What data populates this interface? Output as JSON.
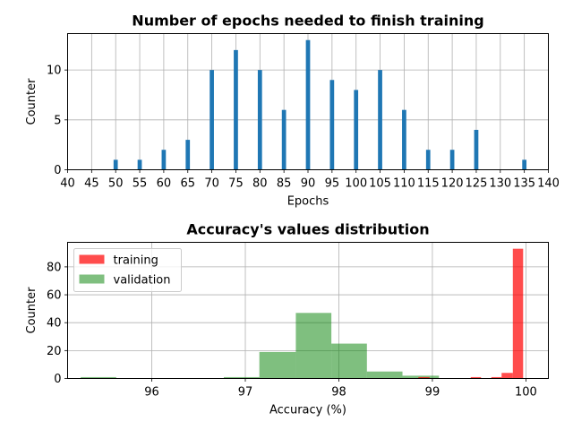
{
  "chart_data": [
    {
      "type": "bar",
      "title": "Number of epochs needed to finish training",
      "xlabel": "Epochs",
      "ylabel": "Counter",
      "xlim": [
        40,
        140
      ],
      "ylim": [
        0,
        13.65
      ],
      "grid": true,
      "xticks": [
        40,
        45,
        50,
        55,
        60,
        65,
        70,
        75,
        80,
        85,
        90,
        95,
        100,
        105,
        110,
        115,
        120,
        125,
        130,
        135,
        140
      ],
      "yticks": [
        0,
        5,
        10
      ],
      "color": "#1f77b4",
      "values": [
        {
          "x": 50,
          "y": 1
        },
        {
          "x": 55,
          "y": 1
        },
        {
          "x": 60,
          "y": 2
        },
        {
          "x": 65,
          "y": 3
        },
        {
          "x": 70,
          "y": 10
        },
        {
          "x": 75,
          "y": 12
        },
        {
          "x": 80,
          "y": 10
        },
        {
          "x": 85,
          "y": 6
        },
        {
          "x": 90,
          "y": 13
        },
        {
          "x": 95,
          "y": 9
        },
        {
          "x": 100,
          "y": 8
        },
        {
          "x": 105,
          "y": 10
        },
        {
          "x": 110,
          "y": 6
        },
        {
          "x": 115,
          "y": 2
        },
        {
          "x": 120,
          "y": 2
        },
        {
          "x": 125,
          "y": 4
        },
        {
          "x": 135,
          "y": 1
        }
      ]
    },
    {
      "type": "histogram",
      "title": "Accuracy's values distribution",
      "xlabel": "Accuracy (%)",
      "ylabel": "Counter",
      "xlim": [
        95.1,
        100.24
      ],
      "ylim": [
        0,
        97.6
      ],
      "grid": true,
      "xticks": [
        96,
        97,
        98,
        99,
        100
      ],
      "yticks": [
        0,
        20,
        40,
        60,
        80
      ],
      "legend": "top-left",
      "series": [
        {
          "name": "validation",
          "color": "#008000",
          "bins": [
            {
              "start": 95.24,
              "end": 95.62,
              "count": 1
            },
            {
              "start": 96.77,
              "end": 97.15,
              "count": 1
            },
            {
              "start": 97.15,
              "end": 97.54,
              "count": 19
            },
            {
              "start": 97.54,
              "end": 97.92,
              "count": 47
            },
            {
              "start": 97.92,
              "end": 98.3,
              "count": 25
            },
            {
              "start": 98.3,
              "end": 98.68,
              "count": 5
            },
            {
              "start": 98.68,
              "end": 99.07,
              "count": 2
            }
          ]
        },
        {
          "name": "training",
          "color": "#ff0000",
          "bins": [
            {
              "start": 98.85,
              "end": 98.97,
              "count": 1
            },
            {
              "start": 99.41,
              "end": 99.52,
              "count": 1
            },
            {
              "start": 99.63,
              "end": 99.74,
              "count": 1
            },
            {
              "start": 99.74,
              "end": 99.86,
              "count": 4
            },
            {
              "start": 99.86,
              "end": 99.97,
              "count": 93
            }
          ]
        }
      ]
    }
  ]
}
